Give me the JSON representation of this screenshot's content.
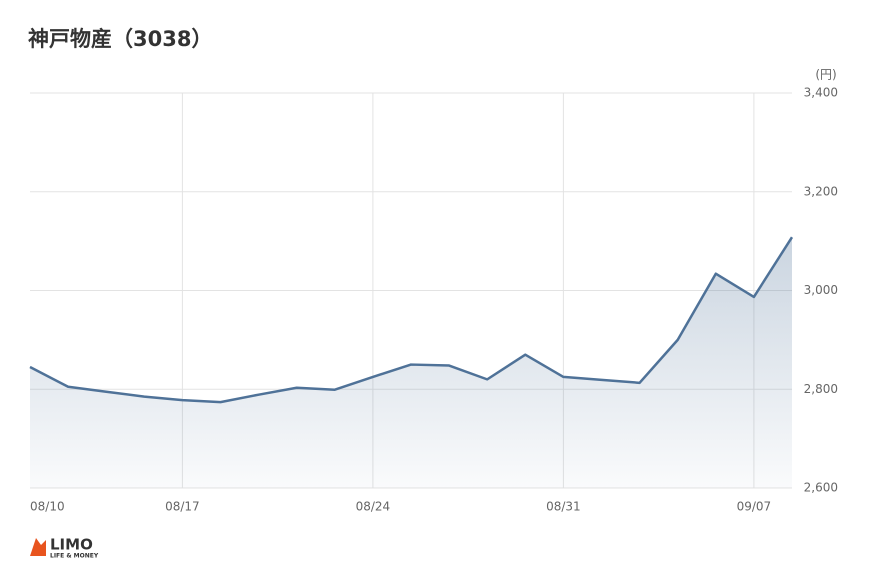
{
  "chart_data": {
    "type": "line",
    "title": "神戸物産（3038）",
    "unit": "(円)",
    "categories": [
      "08/10",
      null,
      null,
      null,
      "08/17",
      null,
      null,
      null,
      null,
      "08/24",
      null,
      null,
      null,
      null,
      "08/31",
      null,
      null,
      null,
      null,
      "09/07",
      null
    ],
    "series": [
      {
        "name": null,
        "color": "#4f7298",
        "values": [
          2845,
          2805,
          2795,
          2785,
          2778,
          2774,
          2789,
          2803,
          2799,
          2825,
          2850,
          2848,
          2820,
          2870,
          2825,
          2819,
          2813,
          2900,
          3034,
          2987,
          3108
        ]
      }
    ],
    "ylim": [
      2600,
      3400
    ],
    "yticks": [
      {
        "value": 2600,
        "label": "2,600"
      },
      {
        "value": 2800,
        "label": "2,800"
      },
      {
        "value": 3000,
        "label": "3,000"
      },
      {
        "value": 3200,
        "label": "3,200"
      },
      {
        "value": 3400,
        "label": "3,400"
      }
    ],
    "grid": true,
    "logo": {
      "name": "LIMO",
      "tagline": "LIFE & MONEY"
    }
  }
}
